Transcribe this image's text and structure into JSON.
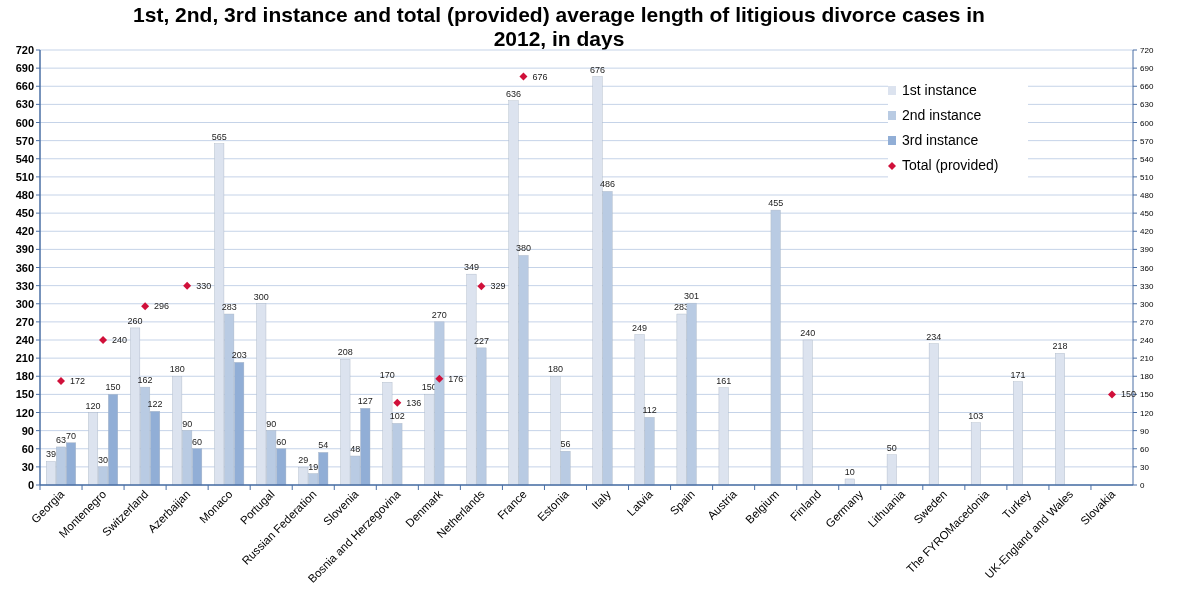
{
  "chart_data": {
    "type": "bar",
    "title": "1st, 2nd, 3rd instance and total (provided) average length of litigious divorce cases in 2012, in days",
    "categories": [
      "Georgia",
      "Montenegro",
      "Switzerland",
      "Azerbaijan",
      "Monaco",
      "Portugal",
      "Russian Federation",
      "Slovenia",
      "Bosnia and Herzegovina",
      "Denmark",
      "Netherlands",
      "France",
      "Estonia",
      "Italy",
      "Latvia",
      "Spain",
      "Austria",
      "Belgium",
      "Finland",
      "Germany",
      "Lithuania",
      "Sweden",
      "The FYROMacedonia",
      "Turkey",
      "UK-England and Wales",
      "Slovakia"
    ],
    "series": [
      {
        "name": "1st instance",
        "color": "#dce3ef",
        "values": [
          39,
          120,
          260,
          180,
          565,
          300,
          29,
          208,
          170,
          150,
          349,
          636,
          180,
          676,
          249,
          283,
          161,
          null,
          240,
          10,
          50,
          234,
          103,
          171,
          218,
          null
        ]
      },
      {
        "name": "2nd instance",
        "color": "#b9cbe3",
        "values": [
          63,
          30,
          162,
          90,
          283,
          90,
          19,
          48,
          102,
          270,
          227,
          380,
          56,
          486,
          112,
          301,
          null,
          455,
          null,
          null,
          null,
          null,
          null,
          null,
          null,
          null
        ]
      },
      {
        "name": "3rd instance",
        "color": "#91aed6",
        "values": [
          70,
          150,
          122,
          60,
          203,
          60,
          54,
          127,
          null,
          null,
          null,
          null,
          null,
          null,
          null,
          null,
          null,
          null,
          null,
          null,
          null,
          null,
          null,
          null,
          null,
          null
        ]
      },
      {
        "name": "Total (provided)",
        "type": "scatter",
        "marker": "diamond",
        "color": "#d0103a",
        "values": [
          172,
          240,
          296,
          330,
          null,
          null,
          null,
          null,
          136,
          176,
          329,
          676,
          null,
          null,
          null,
          null,
          null,
          null,
          null,
          null,
          null,
          null,
          null,
          null,
          null,
          150
        ]
      }
    ],
    "ylim": [
      0,
      720
    ],
    "yticks": [
      0,
      30,
      60,
      90,
      120,
      150,
      180,
      210,
      240,
      270,
      300,
      330,
      360,
      390,
      420,
      450,
      480,
      510,
      540,
      570,
      600,
      630,
      660,
      690,
      720
    ],
    "y2lim": [
      0,
      720
    ],
    "y2ticks": [
      0,
      30,
      60,
      90,
      120,
      150,
      180,
      210,
      240,
      270,
      300,
      330,
      360,
      390,
      420,
      450,
      480,
      510,
      540,
      570,
      600,
      630,
      660,
      690,
      720
    ],
    "grid": "y",
    "legend": "top right",
    "data_labels": true
  }
}
